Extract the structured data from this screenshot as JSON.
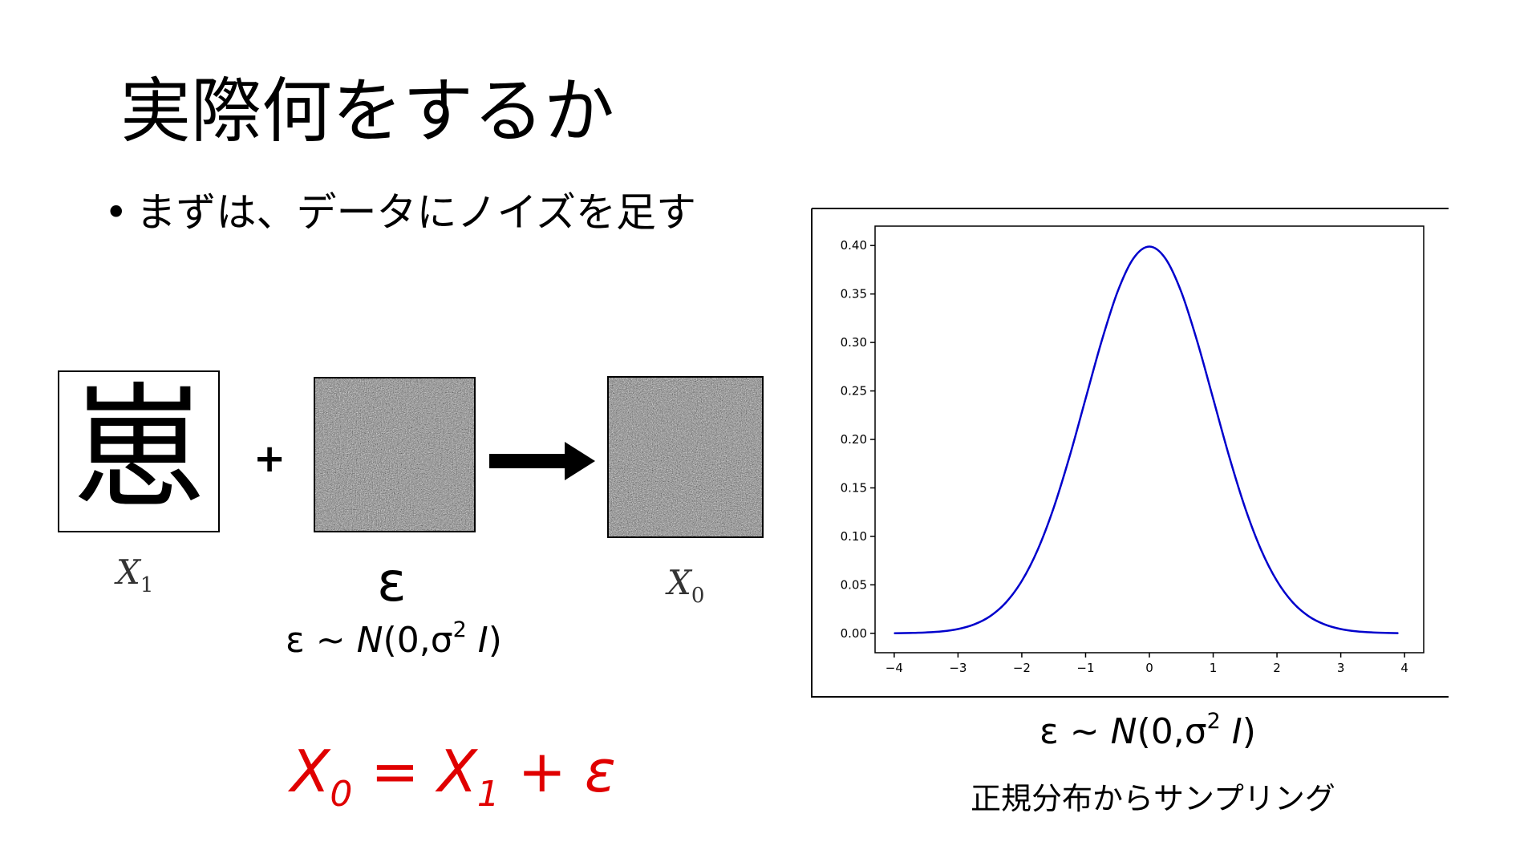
{
  "slide": {
    "title": "実際何をするか",
    "bullet_marker": "•",
    "bullet": "まずは、データにノイズを足す"
  },
  "diagram": {
    "kanji": "崽",
    "plus": "+",
    "x1_symbol": "X",
    "x1_subscript": "1",
    "x0_symbol": "X",
    "x0_subscript": "0",
    "epsilon": "ε"
  },
  "distribution": {
    "prefix": "ε ~ ",
    "name": "N",
    "open": "(0,σ",
    "power": "2",
    "space": " ",
    "identity": "I",
    "close": ")"
  },
  "equation": {
    "lhs_symbol": "X",
    "lhs_subscript": "0",
    "equals": " = ",
    "rhs_symbol": "X",
    "rhs_subscript": "1",
    "plus_eps": " + ε",
    "color": "#e00000"
  },
  "caption": "正規分布からサンプリング",
  "chart_data": {
    "type": "line",
    "title": "",
    "xlabel": "",
    "ylabel": "",
    "xlim": [
      -4.3,
      4.3
    ],
    "ylim": [
      -0.02,
      0.42
    ],
    "x_ticks": [
      -4,
      -3,
      -2,
      -1,
      0,
      1,
      2,
      3,
      4
    ],
    "x_tick_labels": [
      "−4",
      "−3",
      "−2",
      "−1",
      "0",
      "1",
      "2",
      "3",
      "4"
    ],
    "y_ticks": [
      0.0,
      0.05,
      0.1,
      0.15,
      0.2,
      0.25,
      0.3,
      0.35,
      0.4
    ],
    "y_tick_labels": [
      "0.00",
      "0.05",
      "0.10",
      "0.15",
      "0.20",
      "0.25",
      "0.30",
      "0.35",
      "0.40"
    ],
    "grid": false,
    "line_color": "#0000cc",
    "series": [
      {
        "x": [
          -4.0,
          -3.75,
          -3.5,
          -3.25,
          -3.0,
          -2.75,
          -2.5,
          -2.25,
          -2.0,
          -1.75,
          -1.5,
          -1.25,
          -1.0,
          -0.75,
          -0.5,
          -0.25,
          0.0,
          0.25,
          0.5,
          0.75,
          1.0,
          1.25,
          1.5,
          1.75,
          2.0,
          2.25,
          2.5,
          2.75,
          3.0,
          3.25,
          3.5,
          3.75,
          3.9
        ],
        "y": [
          0.0001,
          0.0004,
          0.0009,
          0.002,
          0.0044,
          0.0091,
          0.0175,
          0.0317,
          0.054,
          0.0863,
          0.1295,
          0.1826,
          0.242,
          0.3011,
          0.3521,
          0.3867,
          0.3989,
          0.3867,
          0.3521,
          0.3011,
          0.242,
          0.1826,
          0.1295,
          0.0863,
          0.054,
          0.0317,
          0.0175,
          0.0091,
          0.0044,
          0.002,
          0.0009,
          0.0004,
          0.0002
        ]
      }
    ]
  }
}
